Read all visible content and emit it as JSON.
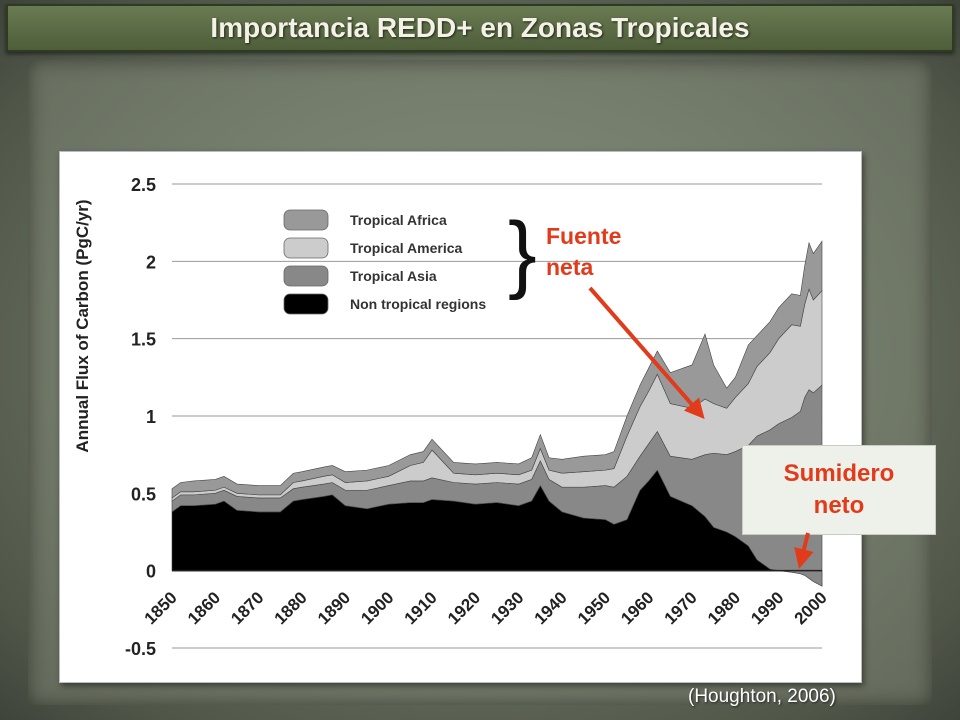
{
  "title": "Importancia REDD+ en Zonas Tropicales",
  "source": "(Houghton, 2006)",
  "annotations": {
    "source_label_1": "Fuente",
    "source_label_2": "neta",
    "sink_label_1": "Sumidero",
    "sink_label_2": "neto",
    "accent_color": "#e23b1b"
  },
  "chart_data": {
    "type": "area",
    "ylabel": "Annual Flux of Carbon (PgC/yr)",
    "xlabel": "",
    "xlim": [
      1850,
      2000
    ],
    "ylim": [
      -0.5,
      2.5
    ],
    "yticks": [
      "2.5",
      "2",
      "1.5",
      "1",
      "0.5",
      "0",
      "-0.5"
    ],
    "ytick_values": [
      2.5,
      2,
      1.5,
      1,
      0.5,
      0,
      -0.5
    ],
    "xticks": [
      "1850",
      "1860",
      "1870",
      "1880",
      "1890",
      "1900",
      "1910",
      "1920",
      "1930",
      "1940",
      "1950",
      "1960",
      "1970",
      "1980",
      "1990",
      "2000"
    ],
    "legend_position": "top-left",
    "grid": "horizontal",
    "x": [
      1850,
      1852,
      1855,
      1860,
      1862,
      1865,
      1870,
      1875,
      1878,
      1880,
      1885,
      1887,
      1890,
      1895,
      1900,
      1905,
      1908,
      1910,
      1915,
      1920,
      1925,
      1930,
      1933,
      1935,
      1937,
      1940,
      1945,
      1950,
      1952,
      1955,
      1958,
      1960,
      1962,
      1965,
      1970,
      1973,
      1975,
      1978,
      1980,
      1983,
      1985,
      1988,
      1990,
      1993,
      1995,
      1996,
      1997,
      1998,
      2000
    ],
    "series": [
      {
        "name": "Non tropical regions",
        "color": "#000000",
        "values": [
          0.38,
          0.42,
          0.42,
          0.43,
          0.45,
          0.39,
          0.38,
          0.38,
          0.45,
          0.46,
          0.48,
          0.49,
          0.42,
          0.4,
          0.43,
          0.44,
          0.44,
          0.46,
          0.45,
          0.43,
          0.44,
          0.42,
          0.45,
          0.55,
          0.45,
          0.38,
          0.34,
          0.33,
          0.3,
          0.33,
          0.52,
          0.58,
          0.65,
          0.48,
          0.42,
          0.35,
          0.28,
          0.25,
          0.22,
          0.16,
          0.07,
          0.01,
          0.0,
          -0.01,
          -0.02,
          -0.03,
          -0.05,
          -0.07,
          -0.1
        ]
      },
      {
        "name": "Tropical Asia",
        "color": "#888888",
        "values": [
          0.07,
          0.07,
          0.07,
          0.07,
          0.07,
          0.09,
          0.09,
          0.09,
          0.08,
          0.08,
          0.08,
          0.08,
          0.1,
          0.12,
          0.12,
          0.14,
          0.14,
          0.14,
          0.12,
          0.13,
          0.13,
          0.14,
          0.14,
          0.16,
          0.14,
          0.16,
          0.2,
          0.22,
          0.24,
          0.28,
          0.22,
          0.24,
          0.25,
          0.26,
          0.3,
          0.4,
          0.48,
          0.5,
          0.55,
          0.65,
          0.8,
          0.9,
          0.95,
          1.0,
          1.05,
          1.15,
          1.22,
          1.22,
          1.3
        ]
      },
      {
        "name": "Tropical America",
        "color": "#cccccc",
        "values": [
          0.02,
          0.02,
          0.02,
          0.02,
          0.02,
          0.02,
          0.02,
          0.02,
          0.04,
          0.04,
          0.05,
          0.05,
          0.05,
          0.06,
          0.06,
          0.1,
          0.12,
          0.18,
          0.06,
          0.06,
          0.06,
          0.06,
          0.06,
          0.08,
          0.06,
          0.09,
          0.1,
          0.1,
          0.12,
          0.26,
          0.32,
          0.34,
          0.37,
          0.34,
          0.33,
          0.36,
          0.32,
          0.3,
          0.35,
          0.4,
          0.45,
          0.5,
          0.55,
          0.6,
          0.55,
          0.6,
          0.65,
          0.6,
          0.61
        ]
      },
      {
        "name": "Tropical Africa",
        "color": "#999999",
        "values": [
          0.06,
          0.06,
          0.07,
          0.07,
          0.07,
          0.06,
          0.06,
          0.06,
          0.06,
          0.06,
          0.06,
          0.06,
          0.07,
          0.07,
          0.07,
          0.07,
          0.07,
          0.07,
          0.07,
          0.07,
          0.07,
          0.07,
          0.08,
          0.09,
          0.08,
          0.09,
          0.1,
          0.1,
          0.11,
          0.13,
          0.14,
          0.15,
          0.15,
          0.2,
          0.28,
          0.42,
          0.25,
          0.13,
          0.13,
          0.25,
          0.2,
          0.2,
          0.2,
          0.2,
          0.2,
          0.25,
          0.3,
          0.3,
          0.32
        ]
      }
    ]
  }
}
